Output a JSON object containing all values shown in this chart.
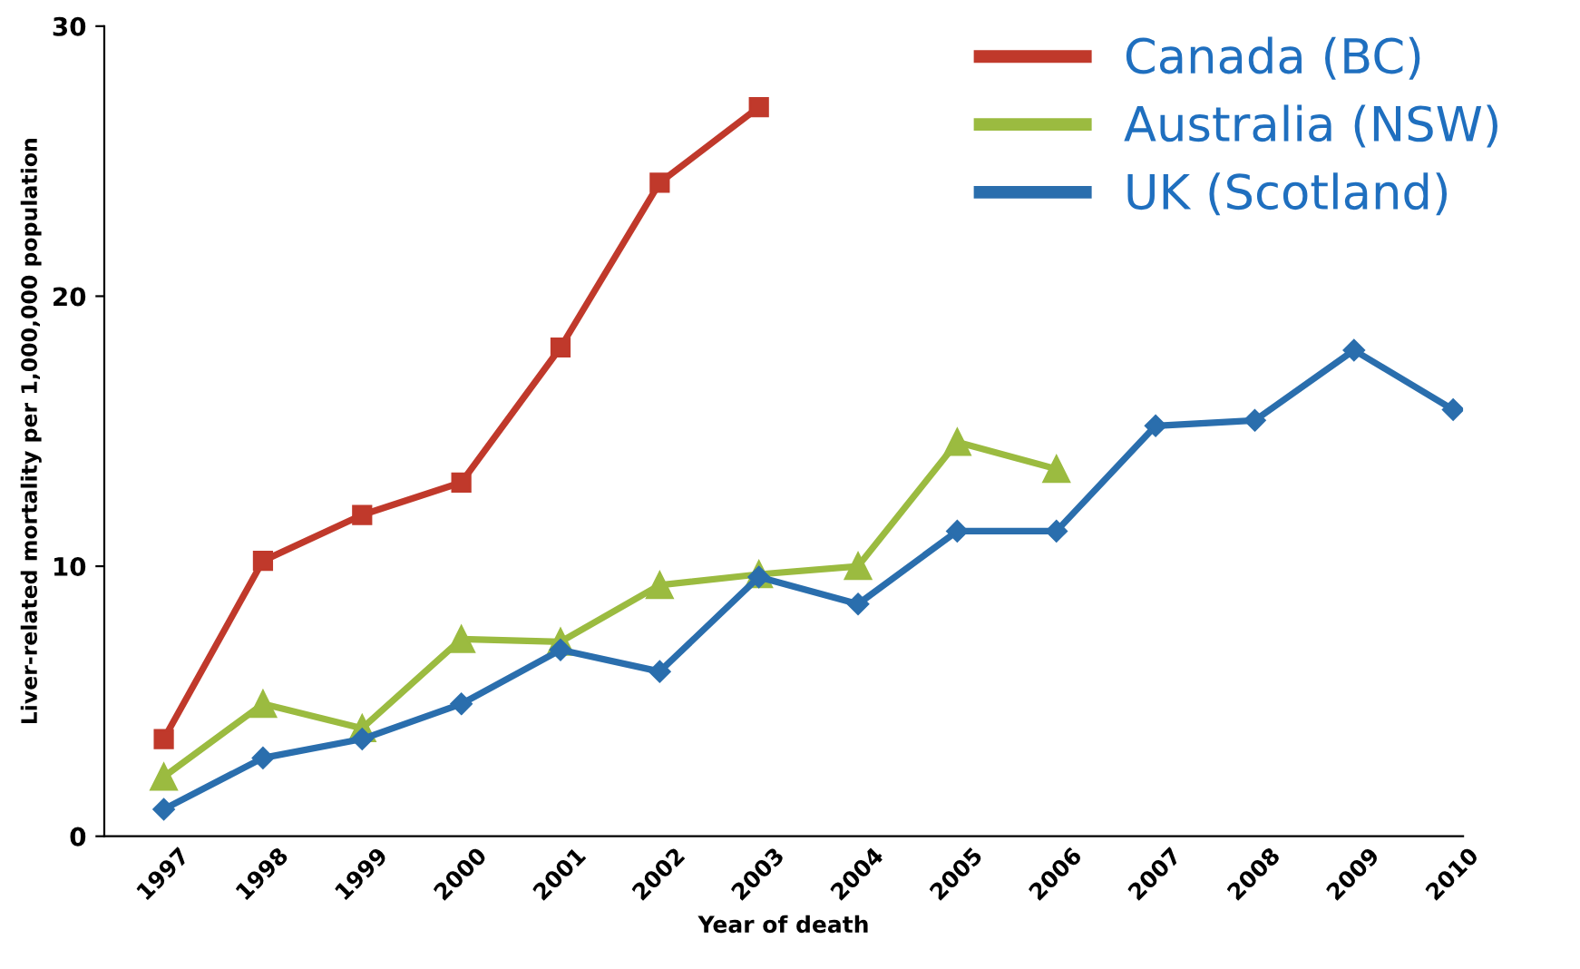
{
  "chart_data": {
    "type": "line",
    "xlabel": "Year of death",
    "ylabel": "Liver-related mortality per 1,000,000 population",
    "categories": [
      "1997",
      "1998",
      "1999",
      "2000",
      "2001",
      "2002",
      "2003",
      "2004",
      "2005",
      "2006",
      "2007",
      "2008",
      "2009",
      "2010"
    ],
    "series": [
      {
        "name": "Canada (BC)",
        "color": "#c0392b",
        "marker": "square",
        "values": [
          3.6,
          10.2,
          11.9,
          13.1,
          18.1,
          24.2,
          27.0,
          null,
          null,
          null,
          null,
          null,
          null,
          null
        ]
      },
      {
        "name": "Australia (NSW)",
        "color": "#9bbb40",
        "marker": "triangle",
        "values": [
          2.2,
          4.9,
          4.0,
          7.3,
          7.2,
          9.3,
          9.7,
          10.0,
          14.6,
          13.6,
          null,
          null,
          null,
          null
        ]
      },
      {
        "name": "UK (Scotland)",
        "color": "#2a6ead",
        "marker": "diamond",
        "values": [
          1.0,
          2.9,
          3.6,
          4.9,
          6.9,
          6.1,
          9.6,
          8.6,
          11.3,
          11.3,
          15.2,
          15.4,
          18.0,
          15.8
        ]
      }
    ],
    "ylim": [
      0,
      30
    ],
    "yticks": [
      0,
      10,
      20,
      30
    ],
    "grid": false,
    "legend": "top right",
    "line_style": "solid"
  }
}
